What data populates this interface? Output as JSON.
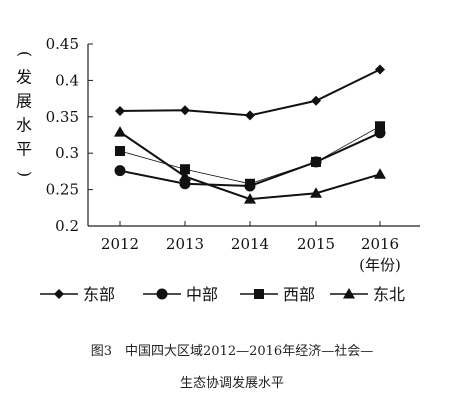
{
  "chart_data": {
    "type": "line",
    "categories": [
      "2012",
      "2013",
      "2014",
      "2015",
      "2016"
    ],
    "x_unit_label": "(年份)",
    "ylabel": "(发展水平)",
    "ylim": [
      0.2,
      0.45
    ],
    "yticks": [
      "0.2",
      "0.25",
      "0.3",
      "0.35",
      "0.4",
      "0.45"
    ],
    "grid": false,
    "legend_position": "bottom",
    "series": [
      {
        "name": "东部",
        "marker": "diamond",
        "values": [
          0.358,
          0.359,
          0.352,
          0.372,
          0.415
        ]
      },
      {
        "name": "中部",
        "marker": "circle",
        "values": [
          0.276,
          0.258,
          0.255,
          0.288,
          0.328
        ]
      },
      {
        "name": "西部",
        "marker": "square",
        "values": [
          0.303,
          0.278,
          0.258,
          0.288,
          0.337
        ]
      },
      {
        "name": "东北",
        "marker": "triangle",
        "values": [
          0.329,
          0.268,
          0.237,
          0.245,
          0.271
        ]
      }
    ]
  },
  "caption": {
    "line1": "图3　中国四大区域2012—2016年经济—社会—",
    "line2": "生态协调发展水平"
  }
}
